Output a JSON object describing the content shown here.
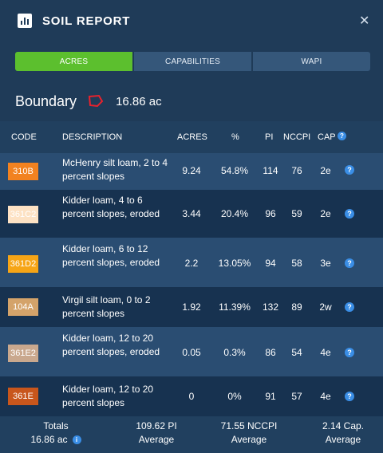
{
  "header": {
    "title": "SOIL REPORT",
    "logo_icon": "bar-chart-icon",
    "close_icon": "close-icon"
  },
  "tabs": [
    {
      "label": "ACRES",
      "active": true
    },
    {
      "label": "CAPABILITIES",
      "active": false
    },
    {
      "label": "WAPI",
      "active": false
    }
  ],
  "boundary": {
    "label": "Boundary",
    "acres": "16.86 ac",
    "shape_color": "#e8222d"
  },
  "columns": {
    "code": "CODE",
    "description": "DESCRIPTION",
    "acres": "ACRES",
    "percent": "%",
    "pi": "PI",
    "nccpi": "NCCPI",
    "cap": "CAP"
  },
  "rows": [
    {
      "code": "310B",
      "color": "#f28220",
      "text_color": "#ffffff",
      "description": "McHenry silt loam, 2 to 4 percent slopes",
      "acres": "9.24",
      "percent": "54.8%",
      "pi": "114",
      "nccpi": "76",
      "cap": "2e"
    },
    {
      "code": "361C2",
      "color": "#fde2c4",
      "text_color": "#ffffff",
      "description": "Kidder loam, 4 to 6 percent slopes, eroded",
      "acres": "3.44",
      "percent": "20.4%",
      "pi": "96",
      "nccpi": "59",
      "cap": "2e"
    },
    {
      "code": "361D2",
      "color": "#f6a516",
      "text_color": "#ffffff",
      "description": "Kidder loam, 6 to 12 percent slopes, eroded",
      "acres": "2.2",
      "percent": "13.05%",
      "pi": "94",
      "nccpi": "58",
      "cap": "3e"
    },
    {
      "code": "104A",
      "color": "#d4a36a",
      "text_color": "#ffffff",
      "description": "Virgil silt loam, 0 to 2 percent slopes",
      "acres": "1.92",
      "percent": "11.39%",
      "pi": "132",
      "nccpi": "89",
      "cap": "2w"
    },
    {
      "code": "361E2",
      "color": "#c9a88e",
      "text_color": "#ffffff",
      "description": "Kidder loam, 12 to 20 percent slopes, eroded",
      "acres": "0.05",
      "percent": "0.3%",
      "pi": "86",
      "nccpi": "54",
      "cap": "4e"
    },
    {
      "code": "361E",
      "color": "#c8561c",
      "text_color": "#ffffff",
      "description": "Kidder loam, 12 to 20 percent slopes",
      "acres": "0",
      "percent": "0%",
      "pi": "91",
      "nccpi": "57",
      "cap": "4e"
    }
  ],
  "totals": {
    "label": "Totals",
    "acres": "16.86 ac",
    "pi_value": "109.62 PI",
    "pi_sub": "Average",
    "nccpi_value": "71.55 NCCPI",
    "nccpi_sub": "Average",
    "cap_value": "2.14 Cap.",
    "cap_sub": "Average"
  },
  "colors": {
    "background": "#1f3b58",
    "accent_green": "#5cbf2e",
    "help_blue": "#3a8ee6"
  }
}
